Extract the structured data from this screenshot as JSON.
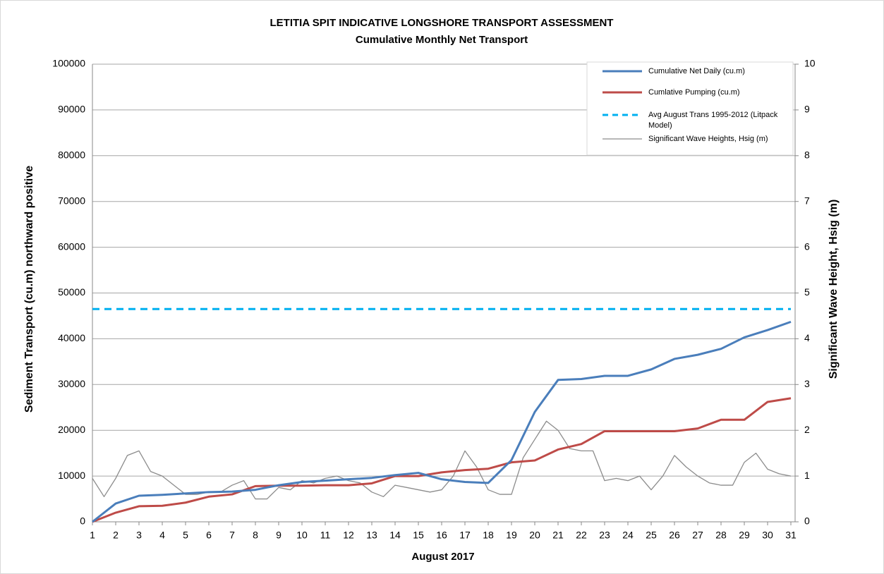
{
  "chart_data": {
    "type": "line",
    "title": "LETITIA SPIT INDICATIVE LONGSHORE TRANSPORT ASSESSMENT",
    "subtitle": "Cumulative Monthly Net Transport",
    "xlabel": "August 2017",
    "ylabel": "Sediment Transport (cu.m) northward positive",
    "y2label": "Significant Wave Height, Hsig (m)",
    "xlim": [
      1,
      31
    ],
    "xticks": [
      1,
      2,
      3,
      4,
      5,
      6,
      7,
      8,
      9,
      10,
      11,
      12,
      13,
      14,
      15,
      16,
      17,
      18,
      19,
      20,
      21,
      22,
      23,
      24,
      25,
      26,
      27,
      28,
      29,
      30,
      31
    ],
    "ylim": [
      0,
      100000
    ],
    "yticks": [
      0,
      10000,
      20000,
      30000,
      40000,
      50000,
      60000,
      70000,
      80000,
      90000,
      100000
    ],
    "y2lim": [
      0,
      10
    ],
    "y2ticks": [
      0,
      1,
      2,
      3,
      4,
      5,
      6,
      7,
      8,
      9,
      10
    ],
    "grid": true,
    "legend": "top-right",
    "series": [
      {
        "name": "Cumulative Net Daily (cu.m)",
        "color": "#4a7ebb",
        "width": 3,
        "x": [
          1,
          2,
          3,
          4,
          5,
          6,
          7,
          8,
          9,
          10,
          11,
          12,
          13,
          14,
          15,
          16,
          17,
          18,
          19,
          20,
          21,
          22,
          23,
          24,
          25,
          26,
          27,
          28,
          29,
          30,
          31
        ],
        "values": [
          0,
          4000,
          5700,
          5900,
          6200,
          6500,
          6600,
          7000,
          8000,
          8700,
          9000,
          9300,
          9600,
          10200,
          10700,
          9300,
          8700,
          8500,
          13500,
          24000,
          31000,
          31200,
          31900,
          31900,
          33300,
          35600,
          36500,
          37800,
          40300,
          41900,
          43700
        ]
      },
      {
        "name": "Cumlative Pumping (cu.m)",
        "color": "#be4b48",
        "width": 3,
        "x": [
          1,
          2,
          3,
          4,
          5,
          6,
          7,
          8,
          9,
          10,
          11,
          12,
          13,
          14,
          15,
          16,
          17,
          18,
          19,
          20,
          21,
          22,
          23,
          24,
          25,
          26,
          27,
          28,
          29,
          30,
          31
        ],
        "values": [
          0,
          2000,
          3400,
          3500,
          4200,
          5500,
          6000,
          7800,
          7900,
          7900,
          8000,
          8000,
          8400,
          10000,
          10000,
          10800,
          11300,
          11600,
          13000,
          13400,
          15800,
          17000,
          19800,
          19800,
          19800,
          19800,
          20400,
          22300,
          22300,
          26200,
          27000
        ]
      },
      {
        "name": "Avg August Trans 1995-2012 (Litpack Model)",
        "color": "#00b0f0",
        "width": 3,
        "dashed": true,
        "x": [
          1,
          31
        ],
        "values": [
          46500,
          46500
        ]
      },
      {
        "name": "Significant Wave Heights, Hsig (m)",
        "color": "#8c8c8c",
        "width": 1.3,
        "axis": "y2",
        "x": [
          1,
          1.5,
          2,
          2.5,
          3,
          3.5,
          4,
          4.5,
          5,
          5.5,
          6,
          6.5,
          7,
          7.5,
          8,
          8.5,
          9,
          9.5,
          10,
          10.5,
          11,
          11.5,
          12,
          12.5,
          13,
          13.5,
          14,
          14.5,
          15,
          15.5,
          16,
          16.5,
          17,
          17.5,
          18,
          18.5,
          19,
          19.5,
          20,
          20.5,
          21,
          21.5,
          22,
          22.5,
          23,
          23.5,
          24,
          24.5,
          25,
          25.5,
          26,
          26.5,
          27,
          27.5,
          28,
          28.5,
          29,
          29.5,
          30,
          30.5,
          31
        ],
        "values": [
          0.95,
          0.55,
          0.95,
          1.45,
          1.55,
          1.1,
          1.0,
          0.8,
          0.6,
          0.6,
          0.65,
          0.65,
          0.8,
          0.9,
          0.5,
          0.5,
          0.75,
          0.7,
          0.9,
          0.85,
          0.95,
          1.0,
          0.9,
          0.85,
          0.65,
          0.55,
          0.8,
          0.75,
          0.7,
          0.65,
          0.7,
          1.0,
          1.55,
          1.2,
          0.7,
          0.6,
          0.6,
          1.4,
          1.8,
          2.2,
          2.0,
          1.6,
          1.55,
          1.55,
          0.9,
          0.95,
          0.9,
          1.0,
          0.7,
          1.0,
          1.45,
          1.2,
          1.0,
          0.85,
          0.8,
          0.8,
          1.3,
          1.5,
          1.15,
          1.05,
          1.0
        ]
      }
    ]
  }
}
